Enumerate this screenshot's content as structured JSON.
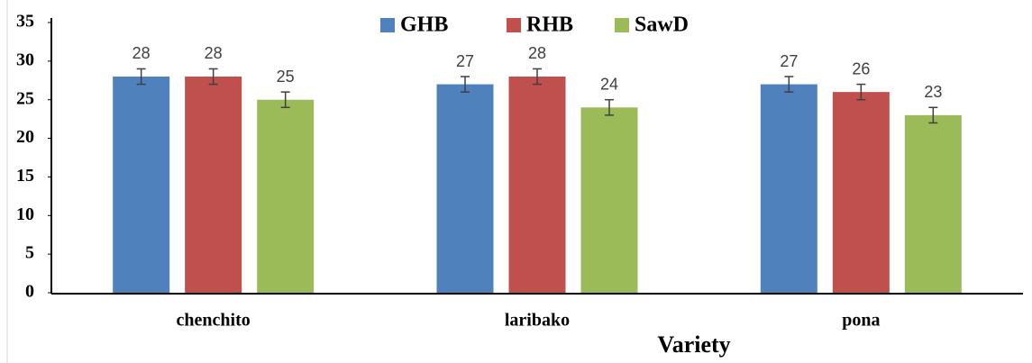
{
  "chart_data": {
    "type": "bar",
    "x_label": "Variety",
    "categories": [
      "chenchito",
      "laribako",
      "pona"
    ],
    "series": [
      {
        "name": "GHB",
        "color": "#4f81bd",
        "values": [
          28,
          27,
          27
        ],
        "errors": [
          1,
          1,
          1
        ]
      },
      {
        "name": "RHB",
        "color": "#c0504d",
        "values": [
          28,
          28,
          26
        ],
        "errors": [
          1,
          1,
          1
        ]
      },
      {
        "name": "SawD",
        "color": "#9bbb59",
        "values": [
          25,
          24,
          23
        ],
        "errors": [
          1,
          1,
          1
        ]
      }
    ],
    "ylim": [
      0,
      35
    ],
    "yticks": [
      0,
      5,
      10,
      15,
      20,
      25,
      30,
      35
    ],
    "grid": false,
    "legend": "top"
  }
}
